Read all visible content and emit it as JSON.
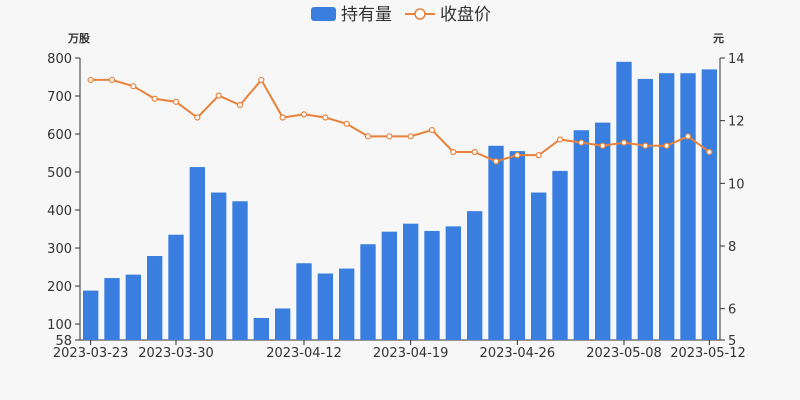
{
  "chart_data": {
    "type": "bar",
    "legend": {
      "placement": "top-center",
      "items": [
        {
          "label": "持有量",
          "symbol": "bar",
          "color": "#3a7fe0"
        },
        {
          "label": "收盘价",
          "symbol": "line",
          "color": "#e8823b"
        }
      ]
    },
    "left_axis": {
      "unit": "万股",
      "ylim": [
        58,
        800
      ],
      "ticks": [
        "800",
        "700",
        "600",
        "500",
        "400",
        "300",
        "200",
        "100",
        "58"
      ],
      "tick_values": [
        800,
        700,
        600,
        500,
        400,
        300,
        200,
        100,
        58
      ]
    },
    "right_axis": {
      "unit": "元",
      "ylim": [
        5,
        14
      ],
      "ticks": [
        "14",
        "12",
        "10",
        "8",
        "6",
        "5"
      ],
      "tick_values": [
        14,
        12,
        10,
        8,
        6,
        5
      ]
    },
    "x_axis": {
      "tick_labels": [
        "2023-03-23",
        "2023-03-30",
        "2023-04-12",
        "2023-04-19",
        "2023-04-26",
        "2023-05-08",
        "2023-05-12"
      ],
      "tick_indices": [
        0,
        4,
        10,
        15,
        20,
        25,
        29
      ]
    },
    "grid": false,
    "series": [
      {
        "name": "持有量",
        "type": "bar",
        "color": "#3a7fe0",
        "values": [
          188,
          221,
          230,
          279,
          335,
          513,
          446,
          423,
          116,
          141,
          260,
          233,
          246,
          310,
          343,
          364,
          345,
          357,
          397,
          569,
          555,
          446,
          503,
          610,
          630,
          790,
          745,
          760,
          760,
          770
        ]
      },
      {
        "name": "收盘价",
        "type": "line",
        "color": "#e8823b",
        "values": [
          13.3,
          13.3,
          13.1,
          12.7,
          12.6,
          12.1,
          12.8,
          12.5,
          13.3,
          12.1,
          12.2,
          12.1,
          11.9,
          11.5,
          11.5,
          11.5,
          11.7,
          11.0,
          11.0,
          10.7,
          10.9,
          10.9,
          11.4,
          11.3,
          11.2,
          11.3,
          11.2,
          11.2,
          11.5,
          11.0
        ]
      }
    ]
  }
}
